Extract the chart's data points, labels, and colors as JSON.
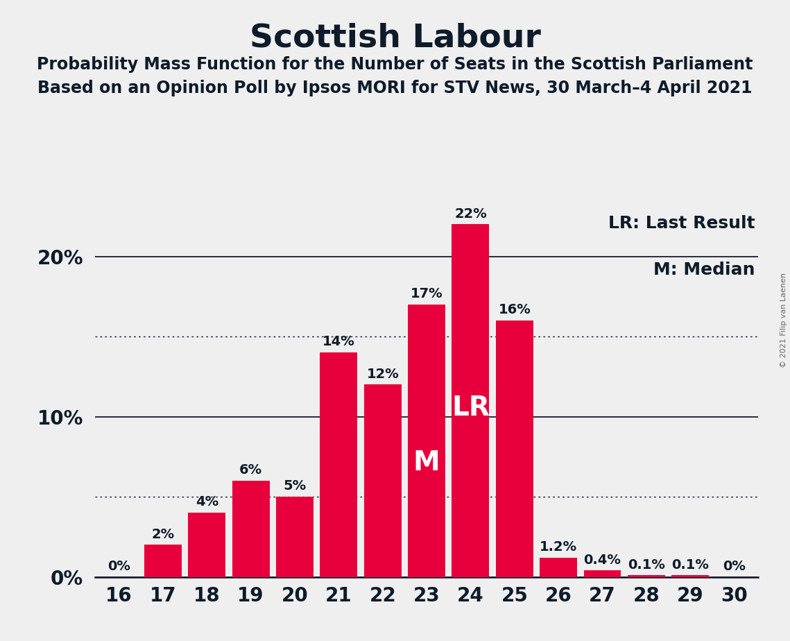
{
  "title": "Scottish Labour",
  "subtitle1": "Probability Mass Function for the Number of Seats in the Scottish Parliament",
  "subtitle2": "Based on an Opinion Poll by Ipsos MORI for STV News, 30 March–4 April 2021",
  "copyright": "© 2021 Filip van Laenen",
  "seats": [
    16,
    17,
    18,
    19,
    20,
    21,
    22,
    23,
    24,
    25,
    26,
    27,
    28,
    29,
    30
  ],
  "probabilities": [
    0.0,
    2.0,
    4.0,
    6.0,
    5.0,
    14.0,
    12.0,
    17.0,
    22.0,
    16.0,
    1.2,
    0.4,
    0.1,
    0.1,
    0.0
  ],
  "bar_labels": [
    "0%",
    "2%",
    "4%",
    "6%",
    "5%",
    "14%",
    "12%",
    "17%",
    "22%",
    "16%",
    "1.2%",
    "0.4%",
    "0.1%",
    "0.1%",
    "0%"
  ],
  "bar_color": "#e8003d",
  "background_color": "#efefef",
  "text_color": "#0d1b2a",
  "median_seat": 23,
  "last_result_seat": 24,
  "legend_lr": "LR: Last Result",
  "legend_m": "M: Median",
  "dotted_lines": [
    5.0,
    15.0
  ],
  "solid_lines": [
    0,
    10,
    20
  ],
  "ylim": [
    0,
    24
  ],
  "yticks": [
    0,
    10,
    20
  ],
  "ytick_labels": [
    "0%",
    "10%",
    "20%"
  ],
  "title_fontsize": 34,
  "subtitle_fontsize": 17,
  "tick_fontsize": 20,
  "legend_fontsize": 18,
  "bar_label_fontsize": 14,
  "m_label_fontsize": 28,
  "lr_label_fontsize": 28,
  "copyright_fontsize": 8
}
